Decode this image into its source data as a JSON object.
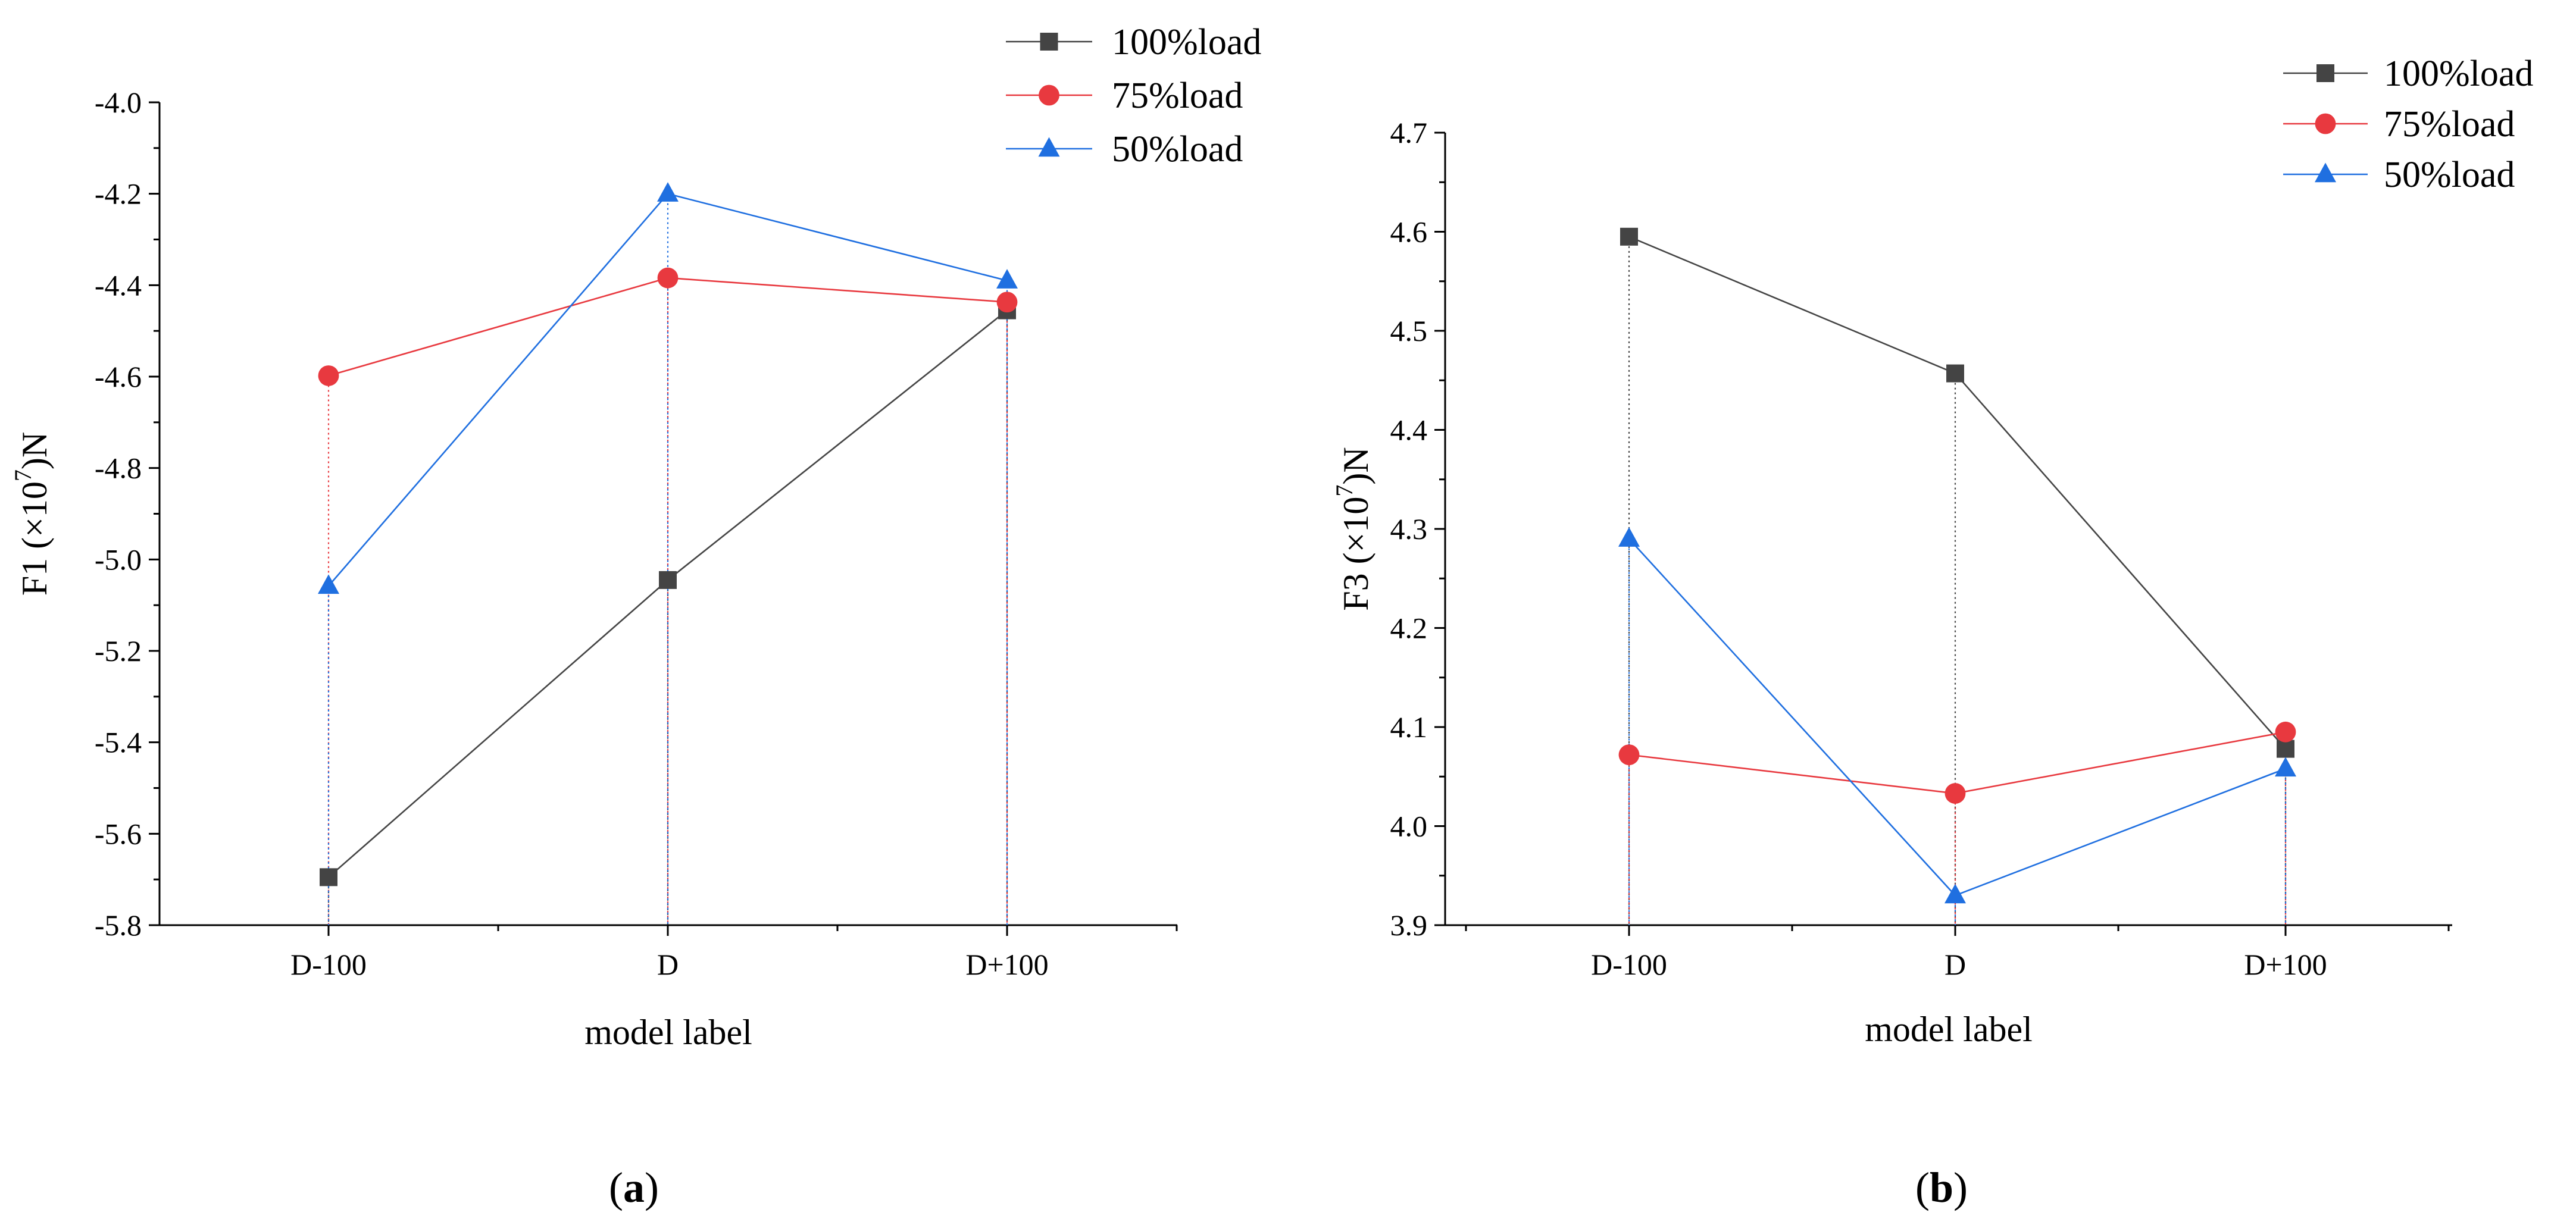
{
  "chart_data": [
    {
      "type": "line",
      "panel_label": {
        "open": "(",
        "letter": "a",
        "close": ")"
      },
      "categories": [
        "D-100",
        "D",
        "D+100"
      ],
      "xlabel": "model label",
      "ylabel": {
        "prefix": "F1 (×10",
        "exponent": "7",
        "suffix": ")N"
      },
      "ylim": [
        -5.8,
        -4.0
      ],
      "yticks": [
        -4.0,
        -4.2,
        -4.4,
        -4.6,
        -4.8,
        -5.0,
        -5.2,
        -5.4,
        -5.6,
        -5.8
      ],
      "ytick_labels": [
        "-4.0",
        "-4.2",
        "-4.4",
        "-4.6",
        "-4.8",
        "-5.0",
        "-5.2",
        "-5.4",
        "-5.6",
        "-5.8"
      ],
      "grid": false,
      "drop_lines": true,
      "legend_position": "top-right",
      "series": [
        {
          "name": "100%load",
          "marker": "square",
          "color": "#444444",
          "values": [
            -5.695,
            -5.045,
            -4.455
          ]
        },
        {
          "name": "75%load",
          "marker": "circle",
          "color": "#e8393f",
          "values": [
            -4.598,
            -4.384,
            -4.437
          ]
        },
        {
          "name": "50%load",
          "marker": "triangle",
          "color": "#1f6fe0",
          "values": [
            -5.058,
            -4.2,
            -4.39
          ]
        }
      ]
    },
    {
      "type": "line",
      "panel_label": {
        "open": "(",
        "letter": "b",
        "close": ")"
      },
      "categories": [
        "D-100",
        "D",
        "D+100"
      ],
      "xlabel": "model label",
      "ylabel": {
        "prefix": "F3 (×10",
        "exponent": "7",
        "suffix": ")N"
      },
      "ylim": [
        3.9,
        4.7
      ],
      "yticks": [
        3.9,
        4.0,
        4.1,
        4.2,
        4.3,
        4.4,
        4.5,
        4.6,
        4.7
      ],
      "ytick_labels": [
        "3.9",
        "4.0",
        "4.1",
        "4.2",
        "4.3",
        "4.4",
        "4.5",
        "4.6",
        "4.7"
      ],
      "grid": false,
      "drop_lines": true,
      "legend_position": "top-right",
      "series": [
        {
          "name": "100%load",
          "marker": "square",
          "color": "#444444",
          "values": [
            4.595,
            4.457,
            4.078
          ]
        },
        {
          "name": "75%load",
          "marker": "circle",
          "color": "#e8393f",
          "values": [
            4.072,
            4.033,
            4.095
          ]
        },
        {
          "name": "50%load",
          "marker": "triangle",
          "color": "#1f6fe0",
          "values": [
            4.29,
            3.93,
            4.058
          ]
        }
      ]
    }
  ]
}
